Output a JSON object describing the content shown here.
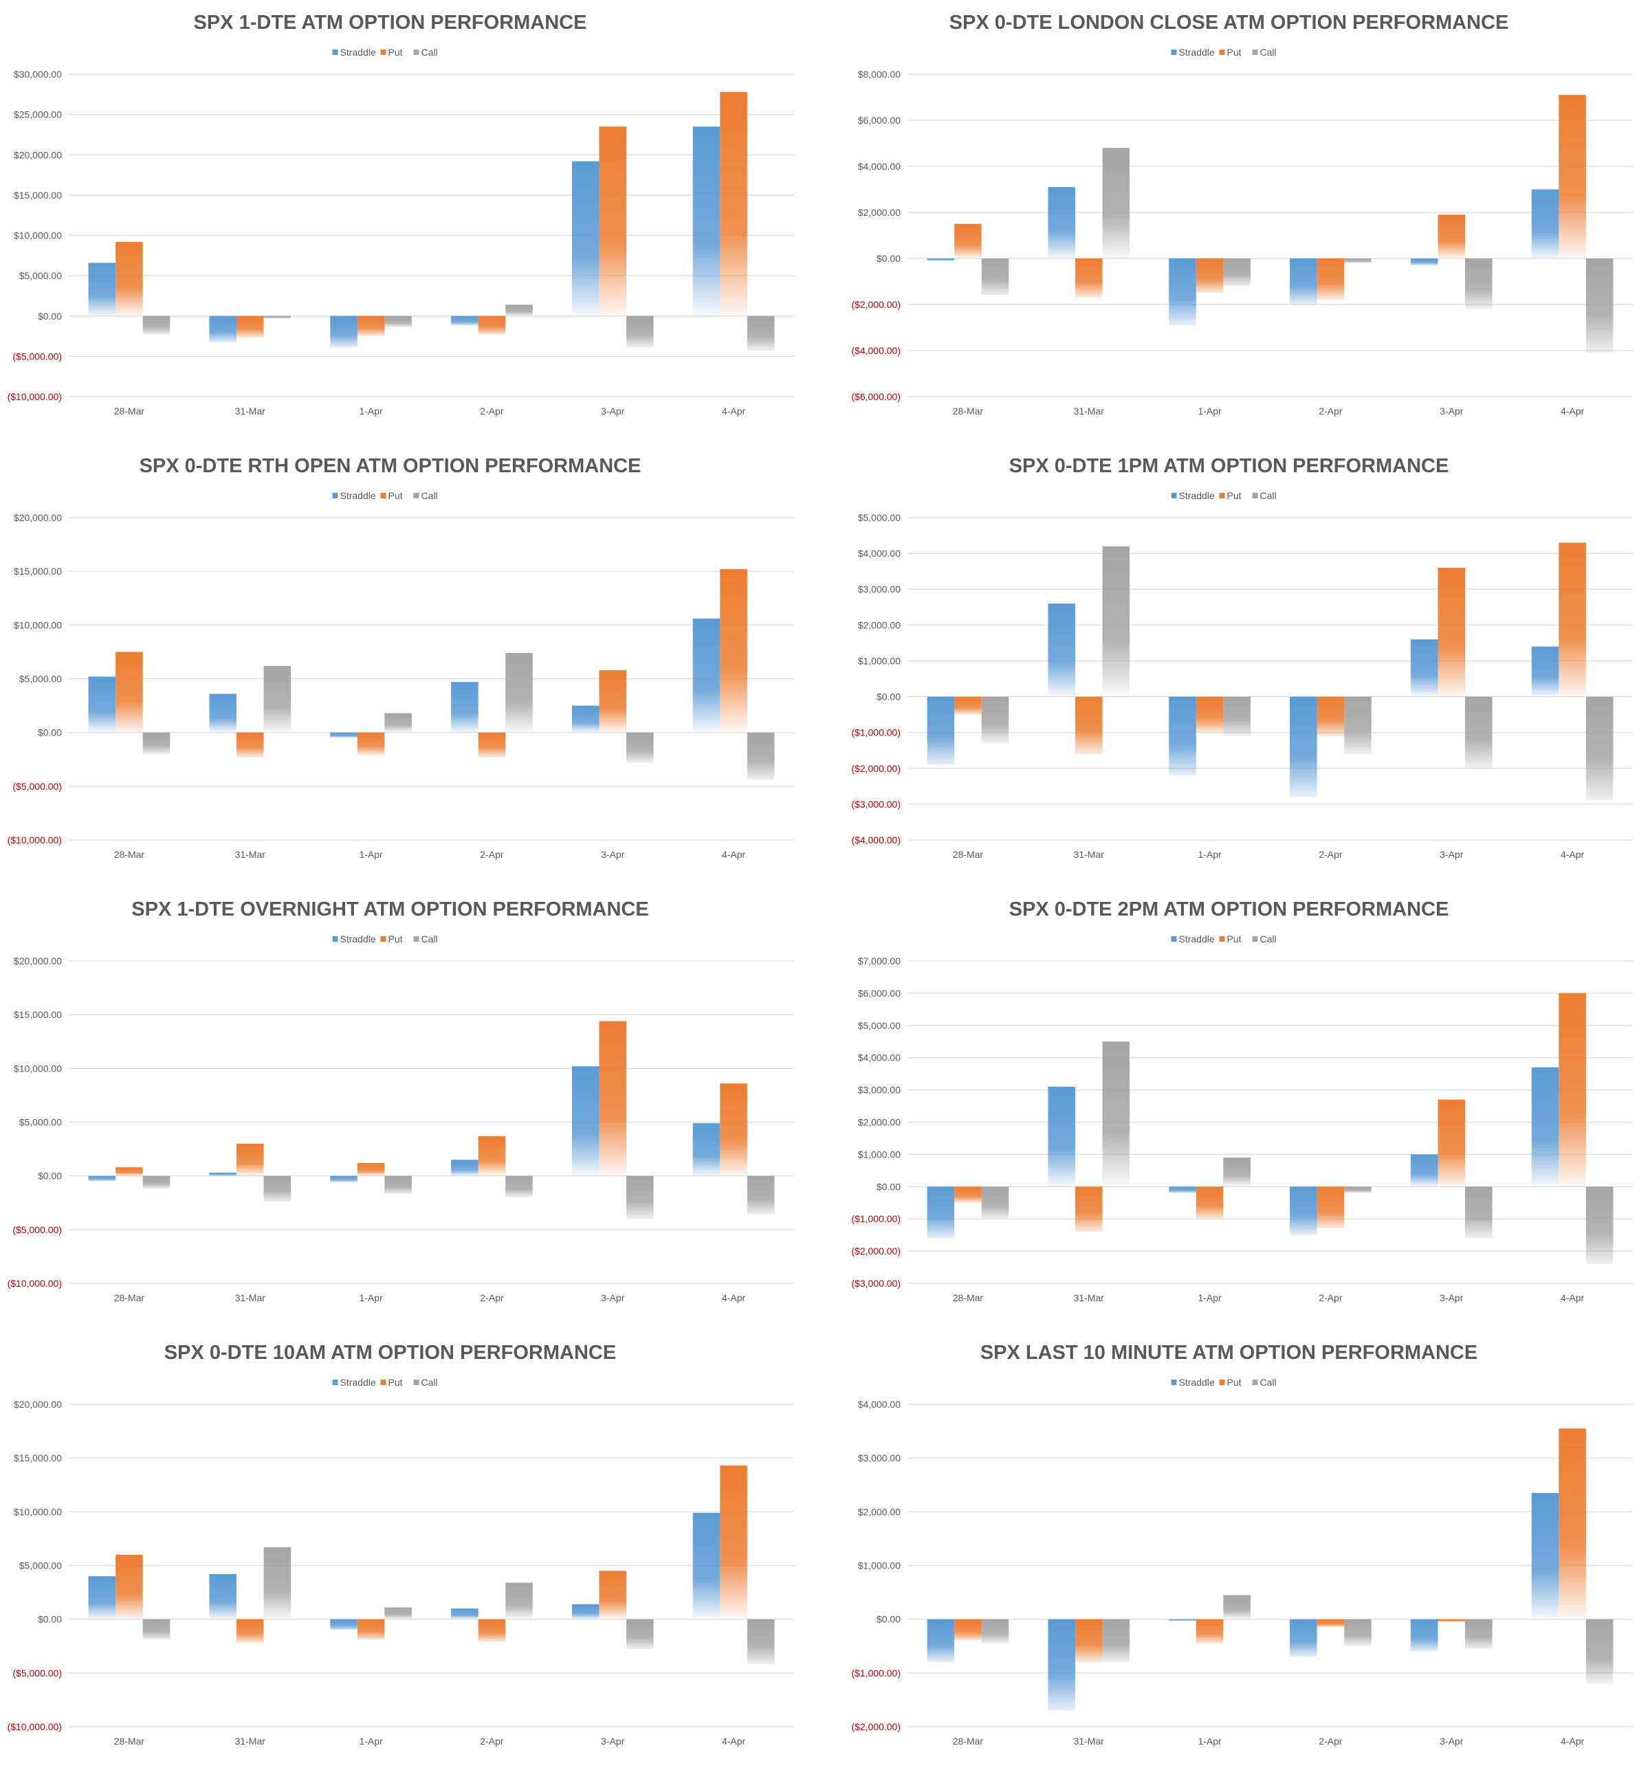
{
  "colors": {
    "straddle": "#5b9bd5",
    "put": "#ed7d31",
    "call": "#a5a5a5",
    "negative_tick": "#c00000",
    "gridline": "#d9d9d9",
    "text": "#595959"
  },
  "legend": [
    "Straddle",
    "Put",
    "Call"
  ],
  "chart_data": [
    {
      "type": "bar",
      "title": "SPX 1-DTE ATM OPTION PERFORMANCE",
      "categories": [
        "28-Mar",
        "31-Mar",
        "1-Apr",
        "2-Apr",
        "3-Apr",
        "4-Apr"
      ],
      "yticks": [
        {
          "value": 30000,
          "label": "$30,000.00"
        },
        {
          "value": 25000,
          "label": "$25,000.00"
        },
        {
          "value": 20000,
          "label": "$20,000.00"
        },
        {
          "value": 15000,
          "label": "$15,000.00"
        },
        {
          "value": 10000,
          "label": "$10,000.00"
        },
        {
          "value": 5000,
          "label": "$5,000.00"
        },
        {
          "value": 0,
          "label": "$0.00"
        },
        {
          "value": -5000,
          "label": "($5,000.00)"
        },
        {
          "value": -10000,
          "label": "($10,000.00)"
        }
      ],
      "ylim": [
        -10000,
        30000
      ],
      "series": [
        {
          "name": "Straddle",
          "values": [
            6600,
            -3300,
            -3900,
            -1200,
            19200,
            23500
          ]
        },
        {
          "name": "Put",
          "values": [
            9200,
            -2700,
            -2500,
            -2300,
            23500,
            27800
          ]
        },
        {
          "name": "Call",
          "values": [
            -2300,
            -300,
            -1400,
            1400,
            -3900,
            -4300
          ]
        }
      ]
    },
    {
      "type": "bar",
      "title": "SPX 0-DTE  LONDON CLOSE ATM OPTION PERFORMANCE",
      "categories": [
        "28-Mar",
        "31-Mar",
        "1-Apr",
        "2-Apr",
        "3-Apr",
        "4-Apr"
      ],
      "yticks": [
        {
          "value": 8000,
          "label": "$8,000.00"
        },
        {
          "value": 6000,
          "label": "$6,000.00"
        },
        {
          "value": 4000,
          "label": "$4,000.00"
        },
        {
          "value": 2000,
          "label": "$2,000.00"
        },
        {
          "value": 0,
          "label": "$0.00"
        },
        {
          "value": -2000,
          "label": "($2,000.00)"
        },
        {
          "value": -4000,
          "label": "($4,000.00)"
        },
        {
          "value": -6000,
          "label": "($6,000.00)"
        }
      ],
      "ylim": [
        -6000,
        8000
      ],
      "series": [
        {
          "name": "Straddle",
          "values": [
            -100,
            3100,
            -2900,
            -2000,
            -300,
            3000
          ]
        },
        {
          "name": "Put",
          "values": [
            1500,
            -1700,
            -1500,
            -1800,
            1900,
            7100
          ]
        },
        {
          "name": "Call",
          "values": [
            -1600,
            4800,
            -1200,
            -200,
            -2200,
            -4100
          ]
        }
      ]
    },
    {
      "type": "bar",
      "title": "SPX 0-DTE RTH OPEN ATM OPTION PERFORMANCE",
      "categories": [
        "28-Mar",
        "31-Mar",
        "1-Apr",
        "2-Apr",
        "3-Apr",
        "4-Apr"
      ],
      "yticks": [
        {
          "value": 20000,
          "label": "$20,000.00"
        },
        {
          "value": 15000,
          "label": "$15,000.00"
        },
        {
          "value": 10000,
          "label": "$10,000.00"
        },
        {
          "value": 5000,
          "label": "$5,000.00"
        },
        {
          "value": 0,
          "label": "$0.00"
        },
        {
          "value": -5000,
          "label": "($5,000.00)"
        },
        {
          "value": -10000,
          "label": "($10,000.00)"
        }
      ],
      "ylim": [
        -10000,
        20000
      ],
      "series": [
        {
          "name": "Straddle",
          "values": [
            5200,
            3600,
            -500,
            4700,
            2500,
            10600
          ]
        },
        {
          "name": "Put",
          "values": [
            7500,
            -2300,
            -2100,
            -2300,
            5800,
            15200
          ]
        },
        {
          "name": "Call",
          "values": [
            -2000,
            6200,
            1800,
            7400,
            -2800,
            -4400
          ]
        }
      ]
    },
    {
      "type": "bar",
      "title": "SPX 0-DTE 1PM ATM OPTION PERFORMANCE",
      "categories": [
        "28-Mar",
        "31-Mar",
        "1-Apr",
        "2-Apr",
        "3-Apr",
        "4-Apr"
      ],
      "yticks": [
        {
          "value": 5000,
          "label": "$5,000.00"
        },
        {
          "value": 4000,
          "label": "$4,000.00"
        },
        {
          "value": 3000,
          "label": "$3,000.00"
        },
        {
          "value": 2000,
          "label": "$2,000.00"
        },
        {
          "value": 1000,
          "label": "$1,000.00"
        },
        {
          "value": 0,
          "label": "$0.00"
        },
        {
          "value": -1000,
          "label": "($1,000.00)"
        },
        {
          "value": -2000,
          "label": "($2,000.00)"
        },
        {
          "value": -3000,
          "label": "($3,000.00)"
        },
        {
          "value": -4000,
          "label": "($4,000.00)"
        }
      ],
      "ylim": [
        -4000,
        5000
      ],
      "series": [
        {
          "name": "Straddle",
          "values": [
            -1900,
            2600,
            -2200,
            -2800,
            1600,
            1400
          ]
        },
        {
          "name": "Put",
          "values": [
            -500,
            -1600,
            -1000,
            -1100,
            3600,
            4300
          ]
        },
        {
          "name": "Call",
          "values": [
            -1300,
            4200,
            -1100,
            -1600,
            -2000,
            -2900
          ]
        }
      ]
    },
    {
      "type": "bar",
      "title": "SPX 1-DTE OVERNIGHT ATM OPTION PERFORMANCE",
      "categories": [
        "28-Mar",
        "31-Mar",
        "1-Apr",
        "2-Apr",
        "3-Apr",
        "4-Apr"
      ],
      "yticks": [
        {
          "value": 20000,
          "label": "$20,000.00"
        },
        {
          "value": 15000,
          "label": "$15,000.00"
        },
        {
          "value": 10000,
          "label": "$10,000.00"
        },
        {
          "value": 5000,
          "label": "$5,000.00"
        },
        {
          "value": 0,
          "label": "$0.00"
        },
        {
          "value": -5000,
          "label": "($5,000.00)"
        },
        {
          "value": -10000,
          "label": "($10,000.00)"
        }
      ],
      "ylim": [
        -10000,
        20000
      ],
      "series": [
        {
          "name": "Straddle",
          "values": [
            -500,
            300,
            -600,
            1500,
            10200,
            4900
          ]
        },
        {
          "name": "Put",
          "values": [
            800,
            3000,
            1200,
            3700,
            14400,
            8600
          ]
        },
        {
          "name": "Call",
          "values": [
            -1200,
            -2400,
            -1700,
            -2000,
            -4000,
            -3600
          ]
        }
      ]
    },
    {
      "type": "bar",
      "title": "SPX 0-DTE 2PM ATM OPTION PERFORMANCE",
      "categories": [
        "28-Mar",
        "31-Mar",
        "1-Apr",
        "2-Apr",
        "3-Apr",
        "4-Apr"
      ],
      "yticks": [
        {
          "value": 7000,
          "label": "$7,000.00"
        },
        {
          "value": 6000,
          "label": "$6,000.00"
        },
        {
          "value": 5000,
          "label": "$5,000.00"
        },
        {
          "value": 4000,
          "label": "$4,000.00"
        },
        {
          "value": 3000,
          "label": "$3,000.00"
        },
        {
          "value": 2000,
          "label": "$2,000.00"
        },
        {
          "value": 1000,
          "label": "$1,000.00"
        },
        {
          "value": 0,
          "label": "$0.00"
        },
        {
          "value": -1000,
          "label": "($1,000.00)"
        },
        {
          "value": -2000,
          "label": "($2,000.00)"
        },
        {
          "value": -3000,
          "label": "($3,000.00)"
        }
      ],
      "ylim": [
        -3000,
        7000
      ],
      "series": [
        {
          "name": "Straddle",
          "values": [
            -1600,
            3100,
            -200,
            -1500,
            1000,
            3700
          ]
        },
        {
          "name": "Put",
          "values": [
            -500,
            -1400,
            -1000,
            -1300,
            2700,
            6000
          ]
        },
        {
          "name": "Call",
          "values": [
            -1000,
            4500,
            900,
            -200,
            -1600,
            -2400
          ]
        }
      ]
    },
    {
      "type": "bar",
      "title": "SPX 0-DTE 10AM ATM OPTION PERFORMANCE",
      "categories": [
        "28-Mar",
        "31-Mar",
        "1-Apr",
        "2-Apr",
        "3-Apr",
        "4-Apr"
      ],
      "yticks": [
        {
          "value": 20000,
          "label": "$20,000.00"
        },
        {
          "value": 15000,
          "label": "$15,000.00"
        },
        {
          "value": 10000,
          "label": "$10,000.00"
        },
        {
          "value": 5000,
          "label": "$5,000.00"
        },
        {
          "value": 0,
          "label": "$0.00"
        },
        {
          "value": -5000,
          "label": "($5,000.00)"
        },
        {
          "value": -10000,
          "label": "($10,000.00)"
        }
      ],
      "ylim": [
        -10000,
        20000
      ],
      "series": [
        {
          "name": "Straddle",
          "values": [
            4000,
            4200,
            -1000,
            1000,
            1400,
            9900
          ]
        },
        {
          "name": "Put",
          "values": [
            6000,
            -2200,
            -1900,
            -2100,
            4500,
            14300
          ]
        },
        {
          "name": "Call",
          "values": [
            -1900,
            6700,
            1100,
            3400,
            -2800,
            -4200
          ]
        }
      ]
    },
    {
      "type": "bar",
      "title": "SPX LAST 10 MINUTE ATM OPTION PERFORMANCE",
      "categories": [
        "28-Mar",
        "31-Mar",
        "1-Apr",
        "2-Apr",
        "3-Apr",
        "4-Apr"
      ],
      "yticks": [
        {
          "value": 4000,
          "label": "$4,000.00"
        },
        {
          "value": 3000,
          "label": "$3,000.00"
        },
        {
          "value": 2000,
          "label": "$2,000.00"
        },
        {
          "value": 1000,
          "label": "$1,000.00"
        },
        {
          "value": 0,
          "label": "$0.00"
        },
        {
          "value": -1000,
          "label": "($1,000.00)"
        },
        {
          "value": -2000,
          "label": "($2,000.00)"
        }
      ],
      "ylim": [
        -2000,
        4000
      ],
      "series": [
        {
          "name": "Straddle",
          "values": [
            -800,
            -1700,
            -30,
            -700,
            -600,
            2350
          ]
        },
        {
          "name": "Put",
          "values": [
            -400,
            -800,
            -450,
            -150,
            -50,
            3550
          ]
        },
        {
          "name": "Call",
          "values": [
            -450,
            -800,
            450,
            -500,
            -550,
            -1200
          ]
        }
      ]
    }
  ]
}
